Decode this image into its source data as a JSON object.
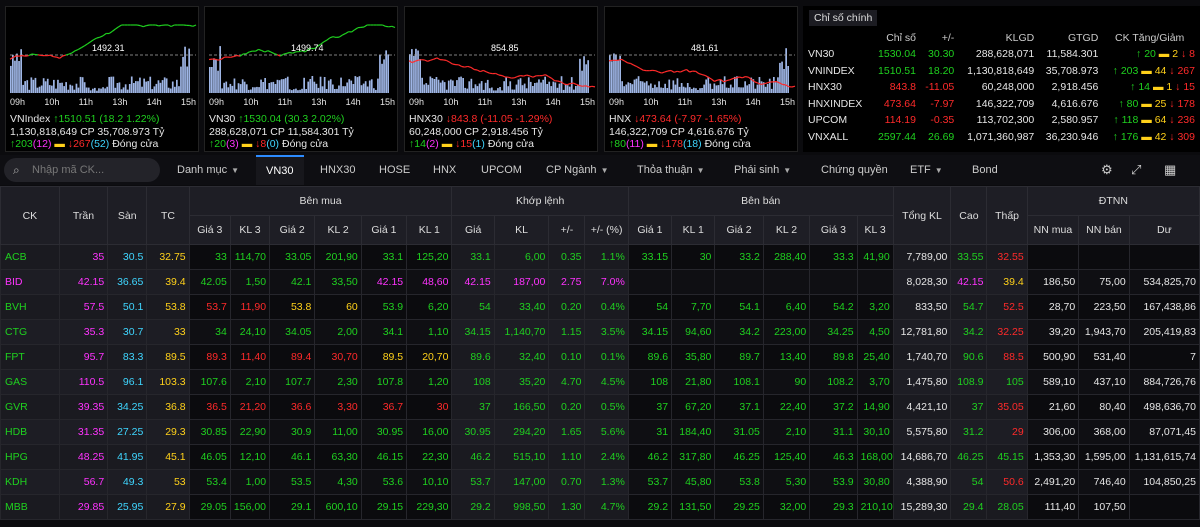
{
  "charts": [
    {
      "name": "VNIndex",
      "ref": "1492.31",
      "arrow": "↑",
      "chg": "1510.51 (18.2 1.22%)",
      "vol": "1,130,818,649 CP",
      "val": "35,708.973 Tỷ",
      "adv": "203",
      "ce": "(12)",
      "dec": "267",
      "fl": "(52)",
      "status": "Đóng cửa",
      "dir": "up",
      "times": [
        "09h",
        "10h",
        "11h",
        "13h",
        "14h",
        "15h"
      ]
    },
    {
      "name": "VN30",
      "ref": "1499.74",
      "arrow": "↑",
      "chg": "1530.04 (30.3 2.02%)",
      "vol": "288,628,071 CP",
      "val": "11,584.301 Tỷ",
      "adv": "20",
      "ce": "(3)",
      "dec": "8",
      "fl": "(0)",
      "status": "Đóng cửa",
      "dir": "up",
      "times": [
        "09h",
        "10h",
        "11h",
        "13h",
        "14h",
        "15h"
      ]
    },
    {
      "name": "HNX30",
      "ref": "854.85",
      "arrow": "↓",
      "chg": "843.8 (-11.05 -1.29%)",
      "vol": "60,248,000 CP",
      "val": "2,918.456 Tỷ",
      "adv": "14",
      "ce": "(2)",
      "dec": "15",
      "fl": "(1)",
      "status": "Đóng cửa",
      "dir": "dn",
      "times": [
        "09h",
        "10h",
        "11h",
        "13h",
        "14h",
        "15h"
      ]
    },
    {
      "name": "HNX",
      "ref": "481.61",
      "arrow": "↓",
      "chg": "473.64 (-7.97 -1.65%)",
      "vol": "146,322,709 CP",
      "val": "4,616.676 Tỷ",
      "adv": "80",
      "ce": "(11)",
      "dec": "178",
      "fl": "(18)",
      "status": "Đóng cửa",
      "dir": "dn",
      "times": [
        "09h",
        "10h",
        "11h",
        "13h",
        "14h",
        "15h"
      ]
    }
  ],
  "market": {
    "tab": "Chỉ số chính",
    "headers": [
      "Chỉ số",
      "+/-",
      "KLGD",
      "GTGD",
      "CK Tăng/Giảm"
    ],
    "rows": [
      {
        "name": "VN30",
        "idx": "1530.04",
        "chg": "30.30",
        "vol": "288,628,071",
        "val": "11,584.301",
        "up": "20",
        "eq": "2",
        "dn": "8",
        "dir": "up"
      },
      {
        "name": "VNINDEX",
        "idx": "1510.51",
        "chg": "18.20",
        "vol": "1,130,818,649",
        "val": "35,708.973",
        "up": "203",
        "eq": "44",
        "dn": "267",
        "dir": "up"
      },
      {
        "name": "HNX30",
        "idx": "843.8",
        "chg": "-11.05",
        "vol": "60,248,000",
        "val": "2,918.456",
        "up": "14",
        "eq": "1",
        "dn": "15",
        "dir": "dn"
      },
      {
        "name": "HNXINDEX",
        "idx": "473.64",
        "chg": "-7.97",
        "vol": "146,322,709",
        "val": "4,616.676",
        "up": "80",
        "eq": "25",
        "dn": "178",
        "dir": "dn"
      },
      {
        "name": "UPCOM",
        "idx": "114.19",
        "chg": "-0.35",
        "vol": "113,702,300",
        "val": "2,580.957",
        "up": "118",
        "eq": "64",
        "dn": "236",
        "dir": "dn"
      },
      {
        "name": "VNXALL",
        "idx": "2597.44",
        "chg": "26.69",
        "vol": "1,071,360,987",
        "val": "36,230.946",
        "up": "176",
        "eq": "42",
        "dn": "309",
        "dir": "up"
      }
    ]
  },
  "nav": {
    "search_placeholder": "Nhập mã CK...",
    "items": [
      "Danh mục",
      "VN30",
      "HNX30",
      "HOSE",
      "HNX",
      "UPCOM",
      "CP Ngành",
      "Thỏa thuận",
      "Phái sinh",
      "Chứng quyền",
      "ETF",
      "Bond"
    ]
  },
  "board": {
    "h1": {
      "ck": "CK",
      "tran": "Trần",
      "san": "Sàn",
      "tc": "TC",
      "ben_mua": "Bên mua",
      "khop": "Khớp lệnh",
      "ben_ban": "Bên bán",
      "tong": "Tổng KL",
      "cao": "Cao",
      "thap": "Thấp",
      "dtnn": "ĐTNN"
    },
    "h2": [
      "Giá 3",
      "KL 3",
      "Giá 2",
      "KL 2",
      "Giá 1",
      "KL 1",
      "Giá",
      "KL",
      "+/-",
      "+/- (%)",
      "Giá 1",
      "KL 1",
      "Giá 2",
      "KL 2",
      "Giá 3",
      "KL 3",
      "NN mua",
      "NN bán",
      "Dư"
    ],
    "rows": [
      {
        "ck": "ACB",
        "c": "up",
        "v": [
          "35",
          "30.5",
          "32.75",
          "33",
          "114,70",
          "33.05",
          "201,90",
          "33.1",
          "125,20",
          "33.1",
          "6,00",
          "0.35",
          "1.1%",
          "33.15",
          "30",
          "33.2",
          "288,40",
          "33.3",
          "41,90",
          "7,789,00",
          "33.55",
          "32.55",
          "",
          "",
          ""
        ],
        "cl": [
          "ce",
          "fl",
          "ref",
          "up",
          "up",
          "up",
          "up",
          "up",
          "up",
          "up",
          "up",
          "up",
          "up",
          "up",
          "up",
          "up",
          "up",
          "up",
          "up",
          "wh",
          "up",
          "dn",
          "wh",
          "wh",
          "wh"
        ]
      },
      {
        "ck": "BID",
        "c": "ce",
        "v": [
          "42.15",
          "36.65",
          "39.4",
          "42.05",
          "1,50",
          "42.1",
          "33,50",
          "42.15",
          "48,60",
          "42.15",
          "187,00",
          "2.75",
          "7.0%",
          "",
          "",
          "",
          "",
          "",
          "",
          "8,028,30",
          "42.15",
          "39.4",
          "186,50",
          "75,00",
          "534,825,70"
        ],
        "cl": [
          "ce",
          "fl",
          "ref",
          "up",
          "up",
          "up",
          "up",
          "ce",
          "ce",
          "ce",
          "ce",
          "ce",
          "ce",
          "up",
          "up",
          "up",
          "up",
          "up",
          "up",
          "wh",
          "ce",
          "ref",
          "wh",
          "wh",
          "wh"
        ]
      },
      {
        "ck": "BVH",
        "c": "up",
        "v": [
          "57.5",
          "50.1",
          "53.8",
          "53.7",
          "11,90",
          "53.8",
          "60",
          "53.9",
          "6,20",
          "54",
          "33,40",
          "0.20",
          "0.4%",
          "54",
          "7,70",
          "54.1",
          "6,40",
          "54.2",
          "3,20",
          "833,50",
          "54.7",
          "52.5",
          "28,70",
          "223,50",
          "167,438,86"
        ],
        "cl": [
          "ce",
          "fl",
          "ref",
          "dn",
          "dn",
          "ref",
          "ref",
          "up",
          "up",
          "up",
          "up",
          "up",
          "up",
          "up",
          "up",
          "up",
          "up",
          "up",
          "up",
          "wh",
          "up",
          "dn",
          "wh",
          "wh",
          "wh"
        ]
      },
      {
        "ck": "CTG",
        "c": "up",
        "v": [
          "35.3",
          "30.7",
          "33",
          "34",
          "24,10",
          "34.05",
          "2,00",
          "34.1",
          "1,10",
          "34.15",
          "1,140,70",
          "1.15",
          "3.5%",
          "34.15",
          "94,60",
          "34.2",
          "223,00",
          "34.25",
          "4,50",
          "12,781,80",
          "34.2",
          "32.25",
          "39,20",
          "1,943,70",
          "205,419,83"
        ],
        "cl": [
          "ce",
          "fl",
          "ref",
          "up",
          "up",
          "up",
          "up",
          "up",
          "up",
          "up",
          "up",
          "up",
          "up",
          "up",
          "up",
          "up",
          "up",
          "up",
          "up",
          "wh",
          "up",
          "dn",
          "wh",
          "wh",
          "wh"
        ]
      },
      {
        "ck": "FPT",
        "c": "up",
        "v": [
          "95.7",
          "83.3",
          "89.5",
          "89.3",
          "11,40",
          "89.4",
          "30,70",
          "89.5",
          "20,70",
          "89.6",
          "32,40",
          "0.10",
          "0.1%",
          "89.6",
          "35,80",
          "89.7",
          "13,40",
          "89.8",
          "25,40",
          "1,740,70",
          "90.6",
          "88.5",
          "500,90",
          "531,40",
          "7"
        ],
        "cl": [
          "ce",
          "fl",
          "ref",
          "dn",
          "dn",
          "dn",
          "dn",
          "ref",
          "ref",
          "up",
          "up",
          "up",
          "up",
          "up",
          "up",
          "up",
          "up",
          "up",
          "up",
          "wh",
          "up",
          "dn",
          "wh",
          "wh",
          "wh"
        ]
      },
      {
        "ck": "GAS",
        "c": "up",
        "v": [
          "110.5",
          "96.1",
          "103.3",
          "107.6",
          "2,10",
          "107.7",
          "2,30",
          "107.8",
          "1,20",
          "108",
          "35,20",
          "4.70",
          "4.5%",
          "108",
          "21,80",
          "108.1",
          "90",
          "108.2",
          "3,70",
          "1,475,80",
          "108.9",
          "105",
          "589,10",
          "437,10",
          "884,726,76"
        ],
        "cl": [
          "ce",
          "fl",
          "ref",
          "up",
          "up",
          "up",
          "up",
          "up",
          "up",
          "up",
          "up",
          "up",
          "up",
          "up",
          "up",
          "up",
          "up",
          "up",
          "up",
          "wh",
          "up",
          "up",
          "wh",
          "wh",
          "wh"
        ]
      },
      {
        "ck": "GVR",
        "c": "up",
        "v": [
          "39.35",
          "34.25",
          "36.8",
          "36.5",
          "21,20",
          "36.6",
          "3,30",
          "36.7",
          "30",
          "37",
          "166,50",
          "0.20",
          "0.5%",
          "37",
          "67,20",
          "37.1",
          "22,40",
          "37.2",
          "14,90",
          "4,421,10",
          "37",
          "35.05",
          "21,60",
          "80,40",
          "498,636,70"
        ],
        "cl": [
          "ce",
          "fl",
          "ref",
          "dn",
          "dn",
          "dn",
          "dn",
          "dn",
          "dn",
          "up",
          "up",
          "up",
          "up",
          "up",
          "up",
          "up",
          "up",
          "up",
          "up",
          "wh",
          "up",
          "dn",
          "wh",
          "wh",
          "wh"
        ]
      },
      {
        "ck": "HDB",
        "c": "up",
        "v": [
          "31.35",
          "27.25",
          "29.3",
          "30.85",
          "22,90",
          "30.9",
          "11,00",
          "30.95",
          "16,00",
          "30.95",
          "294,20",
          "1.65",
          "5.6%",
          "31",
          "184,40",
          "31.05",
          "2,10",
          "31.1",
          "30,10",
          "5,575,80",
          "31.2",
          "29",
          "306,00",
          "368,00",
          "87,071,45"
        ],
        "cl": [
          "ce",
          "fl",
          "ref",
          "up",
          "up",
          "up",
          "up",
          "up",
          "up",
          "up",
          "up",
          "up",
          "up",
          "up",
          "up",
          "up",
          "up",
          "up",
          "up",
          "wh",
          "up",
          "dn",
          "wh",
          "wh",
          "wh"
        ]
      },
      {
        "ck": "HPG",
        "c": "up",
        "v": [
          "48.25",
          "41.95",
          "45.1",
          "46.05",
          "12,10",
          "46.1",
          "63,30",
          "46.15",
          "22,30",
          "46.2",
          "515,10",
          "1.10",
          "2.4%",
          "46.2",
          "317,80",
          "46.25",
          "125,40",
          "46.3",
          "168,00",
          "14,686,70",
          "46.25",
          "45.15",
          "1,353,30",
          "1,595,00",
          "1,131,615,74"
        ],
        "cl": [
          "ce",
          "fl",
          "ref",
          "up",
          "up",
          "up",
          "up",
          "up",
          "up",
          "up",
          "up",
          "up",
          "up",
          "up",
          "up",
          "up",
          "up",
          "up",
          "up",
          "wh",
          "up",
          "up",
          "wh",
          "wh",
          "wh"
        ]
      },
      {
        "ck": "KDH",
        "c": "up",
        "v": [
          "56.7",
          "49.3",
          "53",
          "53.4",
          "1,00",
          "53.5",
          "4,30",
          "53.6",
          "10,10",
          "53.7",
          "147,00",
          "0.70",
          "1.3%",
          "53.7",
          "45,80",
          "53.8",
          "5,30",
          "53.9",
          "30,80",
          "4,388,90",
          "54",
          "50.6",
          "2,491,20",
          "746,40",
          "104,850,25"
        ],
        "cl": [
          "ce",
          "fl",
          "ref",
          "up",
          "up",
          "up",
          "up",
          "up",
          "up",
          "up",
          "up",
          "up",
          "up",
          "up",
          "up",
          "up",
          "up",
          "up",
          "up",
          "wh",
          "up",
          "dn",
          "wh",
          "wh",
          "wh"
        ]
      },
      {
        "ck": "MBB",
        "c": "up",
        "v": [
          "29.85",
          "25.95",
          "27.9",
          "29.05",
          "156,00",
          "29.1",
          "600,10",
          "29.15",
          "229,30",
          "29.2",
          "998,50",
          "1.30",
          "4.7%",
          "29.2",
          "131,50",
          "29.25",
          "32,00",
          "29.3",
          "210,10",
          "15,289,30",
          "29.4",
          "28.05",
          "111,40",
          "107,50",
          ""
        ],
        "cl": [
          "ce",
          "fl",
          "ref",
          "up",
          "up",
          "up",
          "up",
          "up",
          "up",
          "up",
          "up",
          "up",
          "up",
          "up",
          "up",
          "up",
          "up",
          "up",
          "up",
          "wh",
          "up",
          "up",
          "wh",
          "wh",
          "wh"
        ]
      }
    ]
  },
  "colors": {
    "up": "#1fd11f",
    "dn": "#ff2a2a",
    "ref": "#ffd11a",
    "ce": "#ff33ff",
    "fl": "#3fd6ff",
    "accent": "#2d8cff"
  }
}
